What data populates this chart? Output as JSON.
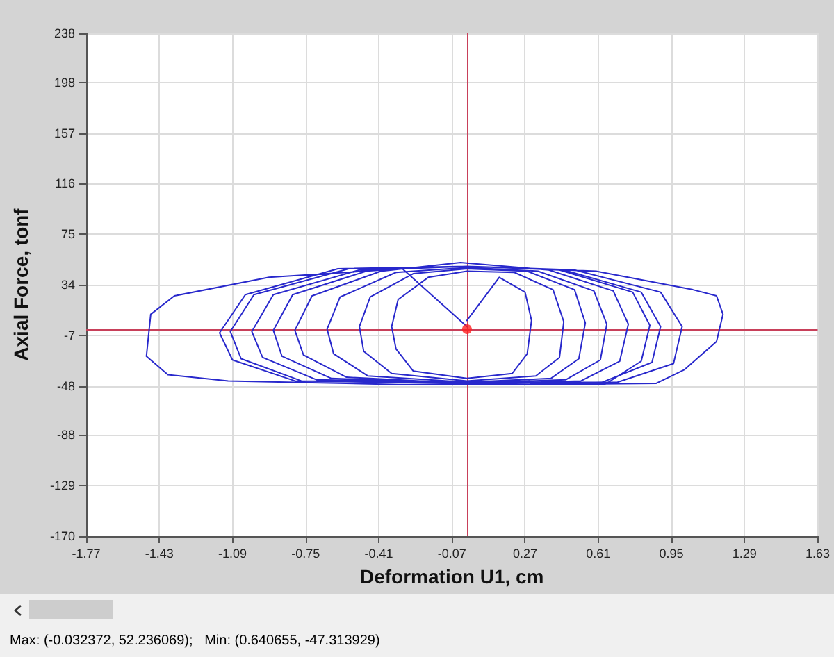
{
  "chart_data": {
    "type": "line",
    "xlabel": "Deformation U1, cm",
    "ylabel": "Axial Force, tonf",
    "xlim": [
      -1.77,
      1.63
    ],
    "xticks": [
      -1.77,
      -1.43,
      -1.09,
      -0.75,
      -0.41,
      -0.07,
      0.27,
      0.61,
      0.95,
      1.29,
      1.63
    ],
    "ylim": [
      -170,
      238
    ],
    "yticks": [
      -170,
      -129,
      -88,
      -48,
      -7,
      34,
      75,
      116,
      157,
      198,
      238
    ],
    "grid": true,
    "marker": "none",
    "line_style": "solid",
    "series": [
      {
        "type": "line",
        "color": "#2828cc",
        "x": [
          0,
          0.15,
          0.27,
          0.3,
          0.28,
          0.21,
          0,
          -0.25,
          -0.33,
          -0.35,
          -0.32,
          -0.18,
          0,
          0.22,
          0.4,
          0.45,
          0.43,
          0.32,
          0,
          -0.35,
          -0.48,
          -0.5,
          -0.45,
          -0.25,
          0,
          0.28,
          0.5,
          0.55,
          0.52,
          0.39,
          0,
          -0.46,
          -0.62,
          -0.65,
          -0.59,
          -0.33,
          0,
          0.33,
          0.59,
          0.65,
          0.62,
          0.46,
          0,
          -0.56,
          -0.76,
          -0.8,
          -0.72,
          -0.4,
          -0.03,
          0.38,
          0.68,
          0.75,
          0.71,
          0.53,
          0.1,
          -0.63,
          -0.86,
          -0.9,
          -0.81,
          -0.45,
          0,
          0.43,
          0.77,
          0.85,
          0.81,
          0.64,
          0.1,
          -0.7,
          -0.95,
          -1.0,
          -0.9,
          -0.5,
          0,
          0.45,
          0.81,
          0.9,
          0.86,
          0.63,
          0,
          -0.77,
          -1.05,
          -1.1,
          -0.99,
          -0.55,
          0,
          0.6,
          1.05,
          1.16,
          1.19,
          1.16,
          1.01,
          0.88,
          0.3,
          -0.8,
          -1.09,
          -1.15,
          -1.03,
          -0.6,
          0,
          0.5,
          0.9,
          1.0,
          0.96,
          0.7,
          0,
          -0.32,
          -1.11,
          -1.39,
          -1.49,
          -1.47,
          -1.36,
          -0.92,
          -0.3,
          0
        ],
        "values": [
          5,
          40,
          28,
          5,
          -22,
          -38,
          -42,
          -36,
          -18,
          0,
          22,
          40,
          45,
          44,
          30,
          4,
          -25,
          -40,
          -44,
          -38,
          -20,
          0,
          24,
          43,
          47,
          45,
          30,
          3,
          -26,
          -42,
          -45,
          -40,
          -22,
          -2,
          24,
          44,
          48,
          45,
          29,
          2,
          -27,
          -43,
          -46,
          -41,
          -23,
          -3,
          25,
          45,
          52,
          46,
          29,
          2,
          -28,
          -44,
          -46,
          -42,
          -24,
          -3,
          26,
          46,
          49,
          46,
          28,
          1,
          -28,
          -47,
          -46,
          -43,
          -25,
          -4,
          26,
          46,
          49,
          46,
          28,
          0,
          -29,
          -45,
          -46,
          -44,
          -26,
          -4,
          26,
          47,
          49,
          45,
          30,
          25,
          10,
          -12,
          -35,
          -46,
          -47,
          -44,
          -27,
          -5,
          26,
          47,
          49,
          46,
          28,
          0,
          -30,
          -45,
          -47,
          -47,
          -44,
          -39,
          -24,
          10,
          25,
          40,
          47,
          0
        ]
      },
      {
        "type": "scatter",
        "color": "#ff2020",
        "marker": "circle",
        "x": [
          0
        ],
        "values": [
          -2
        ]
      }
    ],
    "ref_lines": [
      {
        "axis": "x",
        "value": 0,
        "color": "#c8405a"
      },
      {
        "axis": "y",
        "value": -2,
        "color": "#c8405a"
      }
    ],
    "annotations": [
      "Max: (-0.032372, 52.236069);   Min: (0.640655, -47.313929)"
    ]
  }
}
